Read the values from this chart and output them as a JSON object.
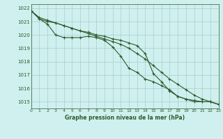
{
  "title": "Graphe pression niveau de la mer (hPa)",
  "bg_color": "#cff0ee",
  "grid_color": "#aacccc",
  "line_color": "#2d5a2d",
  "xlim": [
    0,
    23
  ],
  "ylim": [
    1014.5,
    1022.3
  ],
  "yticks": [
    1015,
    1016,
    1017,
    1018,
    1019,
    1020,
    1021,
    1022
  ],
  "xticks": [
    0,
    1,
    2,
    3,
    4,
    5,
    6,
    7,
    8,
    9,
    10,
    11,
    12,
    13,
    14,
    15,
    16,
    17,
    18,
    19,
    20,
    21,
    22,
    23
  ],
  "series1": [
    1021.8,
    1021.3,
    1021.1,
    1020.9,
    1020.7,
    1020.5,
    1020.3,
    1020.1,
    1019.9,
    1019.7,
    1019.5,
    1019.3,
    1019.0,
    1018.6,
    1018.2,
    1017.7,
    1017.2,
    1016.7,
    1016.3,
    1015.9,
    1015.5,
    1015.2,
    1015.0,
    1014.8
  ],
  "series2": [
    1021.8,
    1021.2,
    1020.8,
    1020.0,
    1019.8,
    1019.8,
    1019.8,
    1019.9,
    1019.8,
    1019.6,
    1019.1,
    1018.4,
    1017.5,
    1017.2,
    1016.7,
    1016.5,
    1016.2,
    1015.9,
    1015.4,
    1015.2,
    1015.0,
    1015.0,
    1015.0,
    1014.8
  ],
  "series3": [
    1021.8,
    1021.2,
    1021.0,
    1020.9,
    1020.7,
    1020.5,
    1020.3,
    1020.2,
    1020.0,
    1019.9,
    1019.7,
    1019.6,
    1019.4,
    1019.2,
    1018.6,
    1017.1,
    1016.5,
    1015.8,
    1015.4,
    1015.2,
    1015.1,
    1015.0,
    1015.0,
    1014.8
  ]
}
